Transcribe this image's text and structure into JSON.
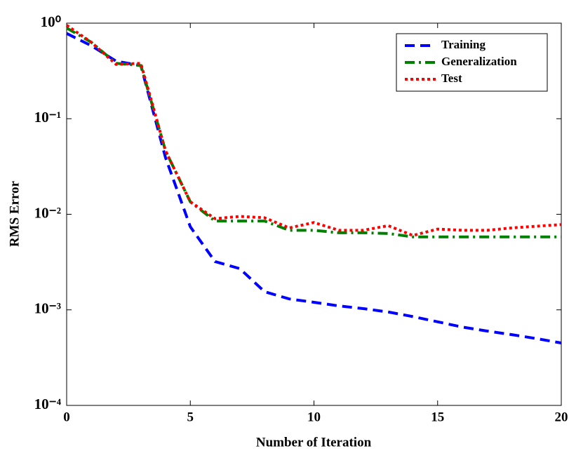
{
  "chart_data": {
    "type": "line",
    "xlabel": "Number of Iteration",
    "ylabel": "RMS Error",
    "x": [
      0,
      1,
      2,
      3,
      4,
      5,
      6,
      7,
      8,
      9,
      10,
      11,
      12,
      13,
      14,
      15,
      16,
      17,
      18,
      19,
      20
    ],
    "series": [
      {
        "name": "Training",
        "color": "#0000ff",
        "linestyle": "--",
        "values": [
          0.78,
          0.58,
          0.4,
          0.36,
          0.039,
          0.0074,
          0.0032,
          0.0027,
          0.00155,
          0.0013,
          0.0012,
          0.0011,
          0.00103,
          0.00095,
          0.00085,
          0.00075,
          0.00066,
          0.0006,
          0.00055,
          0.0005,
          0.00045
        ]
      },
      {
        "name": "Generalization",
        "color": "#008000",
        "linestyle": "-.",
        "values": [
          0.89,
          0.63,
          0.38,
          0.36,
          0.046,
          0.0135,
          0.0085,
          0.0085,
          0.0085,
          0.0068,
          0.0068,
          0.0064,
          0.0064,
          0.0063,
          0.0058,
          0.0058,
          0.0058,
          0.0058,
          0.0058,
          0.0058,
          0.0058
        ]
      },
      {
        "name": "Test",
        "color": "#ff0000",
        "linestyle": ":",
        "values": [
          0.95,
          0.63,
          0.37,
          0.38,
          0.046,
          0.0135,
          0.009,
          0.0095,
          0.0092,
          0.0072,
          0.0082,
          0.0068,
          0.0068,
          0.0076,
          0.006,
          0.007,
          0.0068,
          0.0068,
          0.0072,
          0.0075,
          0.0078
        ]
      }
    ],
    "xlim": [
      0,
      20
    ],
    "xticks": [
      0,
      5,
      10,
      15,
      20
    ],
    "ylim": [
      0.0001,
      1
    ],
    "yscale": "log",
    "yticks": [
      {
        "value": 0.0001,
        "label": "10⁻⁴"
      },
      {
        "value": 0.001,
        "label": "10⁻³"
      },
      {
        "value": 0.01,
        "label": "10⁻²"
      },
      {
        "value": 0.1,
        "label": "10⁻¹"
      },
      {
        "value": 1,
        "label": "10⁰"
      }
    ],
    "grid": false,
    "legend": "upper right"
  }
}
